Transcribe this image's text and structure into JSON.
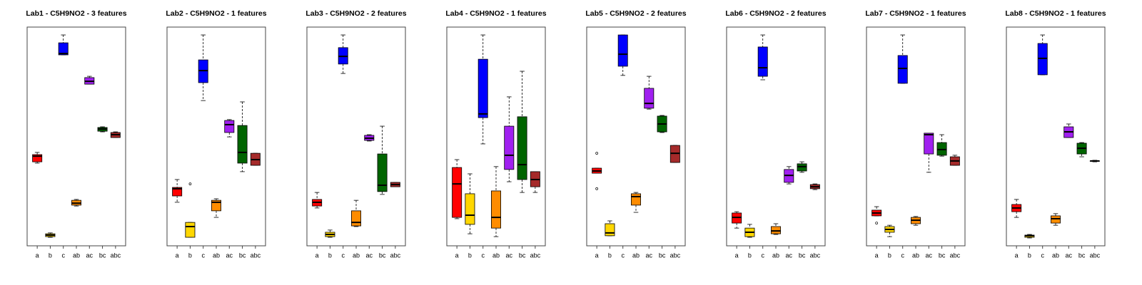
{
  "chart_data": [
    {
      "type": "box",
      "title": "Lab1 - C5H9NO2 - 3 features",
      "categories": [
        "a",
        "b",
        "c",
        "ab",
        "ac",
        "bc",
        "abc"
      ],
      "colors": [
        "#ff0000",
        "#ffd700",
        "#0000ff",
        "#ff8c00",
        "#a020f0",
        "#006400",
        "#a52a2a"
      ],
      "ylim": [
        0,
        100
      ],
      "stats": [
        [
          37.8,
          38.4,
          41.0,
          41.7,
          42.7
        ],
        [
          3.9,
          4.2,
          4.9,
          5.5,
          5.9
        ],
        [
          87.3,
          87.3,
          87.9,
          92.8,
          96.4
        ],
        [
          18.2,
          18.6,
          19.5,
          20.8,
          21.2
        ],
        [
          73.9,
          73.9,
          75.2,
          76.9,
          77.5
        ],
        [
          52.1,
          52.4,
          53.4,
          54.1,
          54.4
        ],
        [
          49.5,
          49.5,
          50.8,
          51.8,
          52.1
        ]
      ],
      "outliers": [
        [],
        [],
        [],
        [],
        [],
        [],
        []
      ]
    },
    {
      "type": "box",
      "title": "Lab2 - C5H9NO2 - 1 features",
      "categories": [
        "a",
        "b",
        "c",
        "ab",
        "ac",
        "bc",
        "abc"
      ],
      "colors": [
        "#ff0000",
        "#ffd700",
        "#0000ff",
        "#ff8c00",
        "#a020f0",
        "#006400",
        "#a52a2a"
      ],
      "ylim": [
        0,
        100
      ],
      "stats": [
        [
          19.9,
          22.8,
          26.1,
          26.7,
          30.3
        ],
        [
          3.9,
          3.9,
          8.8,
          10.7,
          10.7
        ],
        [
          66.4,
          74.6,
          80.1,
          85.0,
          96.4
        ],
        [
          13.0,
          16.0,
          19.9,
          20.8,
          21.5
        ],
        [
          49.8,
          51.8,
          55.4,
          57.3,
          57.7
        ],
        [
          33.9,
          37.8,
          42.7,
          55.0,
          65.8
        ],
        [
          36.8,
          36.8,
          39.4,
          42.3,
          42.3
        ]
      ],
      "outliers": [
        [],
        [
          28.3
        ],
        [],
        [],
        [],
        [],
        []
      ]
    },
    {
      "type": "box",
      "title": "Lab3 - C5H9NO2 - 2 features",
      "categories": [
        "a",
        "b",
        "c",
        "ab",
        "ac",
        "bc",
        "abc"
      ],
      "colors": [
        "#ff0000",
        "#ffd700",
        "#0000ff",
        "#ff8c00",
        "#a020f0",
        "#006400",
        "#a52a2a"
      ],
      "ylim": [
        0,
        100
      ],
      "stats": [
        [
          17.3,
          18.2,
          19.9,
          21.2,
          24.4
        ],
        [
          3.9,
          4.2,
          5.2,
          6.2,
          7.2
        ],
        [
          78.8,
          83.1,
          86.6,
          90.6,
          96.4
        ],
        [
          8.8,
          9.1,
          10.7,
          16.0,
          20.8
        ],
        [
          47.9,
          48.2,
          49.2,
          50.5,
          50.8
        ],
        [
          23.5,
          24.8,
          27.7,
          42.0,
          54.7
        ],
        [
          27.0,
          27.0,
          28.0,
          29.0,
          29.0
        ]
      ],
      "outliers": [
        [],
        [],
        [],
        [],
        [],
        [],
        []
      ]
    },
    {
      "type": "box",
      "title": "Lab4 - C5H9NO2 - 1 features",
      "categories": [
        "a",
        "b",
        "c",
        "ab",
        "ac",
        "bc",
        "abc"
      ],
      "colors": [
        "#ff0000",
        "#ffd700",
        "#0000ff",
        "#ff8c00",
        "#a020f0",
        "#006400",
        "#a52a2a"
      ],
      "ylim": [
        0,
        100
      ],
      "stats": [
        [
          12.4,
          13.0,
          28.3,
          35.8,
          39.4
        ],
        [
          5.5,
          9.8,
          14.0,
          23.8,
          32.9
        ],
        [
          46.6,
          58.6,
          60.3,
          85.3,
          96.4
        ],
        [
          4.2,
          8.1,
          13.0,
          25.1,
          36.2
        ],
        [
          29.3,
          34.9,
          41.4,
          54.7,
          68.1
        ],
        [
          24.4,
          30.3,
          37.1,
          59.0,
          79.8
        ],
        [
          24.4,
          27.0,
          30.3,
          33.9,
          33.9
        ]
      ],
      "outliers": [
        [],
        [],
        [],
        [],
        [],
        [],
        []
      ]
    },
    {
      "type": "box",
      "title": "Lab5 - C5H9NO2 - 2 features",
      "categories": [
        "a",
        "b",
        "c",
        "ab",
        "ac",
        "bc",
        "abc"
      ],
      "colors": [
        "#ff0000",
        "#ffd700",
        "#0000ff",
        "#ff8c00",
        "#a020f0",
        "#006400",
        "#a52a2a"
      ],
      "ylim": [
        0,
        100
      ],
      "stats": [
        [
          33.2,
          33.2,
          34.2,
          35.5,
          35.5
        ],
        [
          4.6,
          4.6,
          5.9,
          10.1,
          11.4
        ],
        [
          77.9,
          82.1,
          87.6,
          96.4,
          96.4
        ],
        [
          15.3,
          18.6,
          22.5,
          23.8,
          24.4
        ],
        [
          62.5,
          62.9,
          65.1,
          72.0,
          77.5
        ],
        [
          51.8,
          52.1,
          55.7,
          59.3,
          59.6
        ],
        [
          38.1,
          38.1,
          42.3,
          45.9,
          45.9
        ]
      ],
      "outliers": [
        [
          42.3,
          26.1
        ],
        [],
        [],
        [],
        [],
        [],
        []
      ]
    },
    {
      "type": "box",
      "title": "Lab6 - C5H9NO2 - 2 features",
      "categories": [
        "a",
        "b",
        "c",
        "ab",
        "ac",
        "bc",
        "abc"
      ],
      "colors": [
        "#ff0000",
        "#ffd700",
        "#0000ff",
        "#ff8c00",
        "#a020f0",
        "#006400",
        "#a52a2a"
      ],
      "ylim": [
        0,
        100
      ],
      "stats": [
        [
          8.1,
          10.4,
          13.0,
          15.0,
          15.6
        ],
        [
          3.9,
          4.2,
          6.2,
          8.1,
          9.8
        ],
        [
          75.9,
          77.5,
          81.4,
          90.9,
          96.4
        ],
        [
          5.2,
          5.5,
          6.8,
          8.8,
          10.1
        ],
        [
          28.3,
          29.0,
          32.2,
          34.9,
          36.2
        ],
        [
          33.6,
          34.2,
          36.2,
          37.5,
          38.4
        ],
        [
          25.7,
          26.1,
          27.0,
          28.0,
          28.3
        ]
      ],
      "outliers": [
        [],
        [],
        [],
        [],
        [],
        [],
        []
      ]
    },
    {
      "type": "box",
      "title": "Lab7 - C5H9NO2 - 1 features",
      "categories": [
        "a",
        "b",
        "c",
        "ab",
        "ac",
        "bc",
        "abc"
      ],
      "colors": [
        "#ff0000",
        "#ffd700",
        "#0000ff",
        "#ff8c00",
        "#a020f0",
        "#006400",
        "#a52a2a"
      ],
      "ylim": [
        0,
        100
      ],
      "stats": [
        [
          13.7,
          13.7,
          15.0,
          16.3,
          17.9
        ],
        [
          4.2,
          6.2,
          7.5,
          8.8,
          9.4
        ],
        [
          74.3,
          74.3,
          81.1,
          87.0,
          96.4
        ],
        [
          9.4,
          10.1,
          11.7,
          13.0,
          13.4
        ],
        [
          33.6,
          42.0,
          50.8,
          51.5,
          51.5
        ],
        [
          41.0,
          41.4,
          44.0,
          47.2,
          50.8
        ],
        [
          36.8,
          36.8,
          38.8,
          40.7,
          41.4
        ]
      ],
      "outliers": [
        [
          10.4
        ],
        [],
        [],
        [],
        [],
        [],
        []
      ]
    },
    {
      "type": "box",
      "title": "Lab8 - C5H9NO2 - 1 features",
      "categories": [
        "a",
        "b",
        "c",
        "ab",
        "ac",
        "bc",
        "abc"
      ],
      "colors": [
        "#ff0000",
        "#ffd700",
        "#0000ff",
        "#ff8c00",
        "#a020f0",
        "#006400",
        "#a52a2a"
      ],
      "ylim": [
        0,
        100
      ],
      "stats": [
        [
          13.0,
          15.6,
          17.3,
          18.9,
          21.2
        ],
        [
          3.6,
          3.9,
          4.6,
          4.9,
          5.2
        ],
        [
          78.2,
          78.2,
          85.7,
          92.5,
          96.4
        ],
        [
          9.4,
          10.4,
          12.4,
          13.7,
          14.7
        ],
        [
          49.5,
          49.5,
          52.1,
          54.4,
          55.7
        ],
        [
          40.7,
          42.0,
          44.6,
          46.9,
          47.2
        ],
        [
          38.4,
          38.8,
          38.8,
          38.8,
          39.1
        ]
      ],
      "outliers": [
        [],
        [],
        [],
        [],
        [],
        [],
        []
      ]
    }
  ]
}
